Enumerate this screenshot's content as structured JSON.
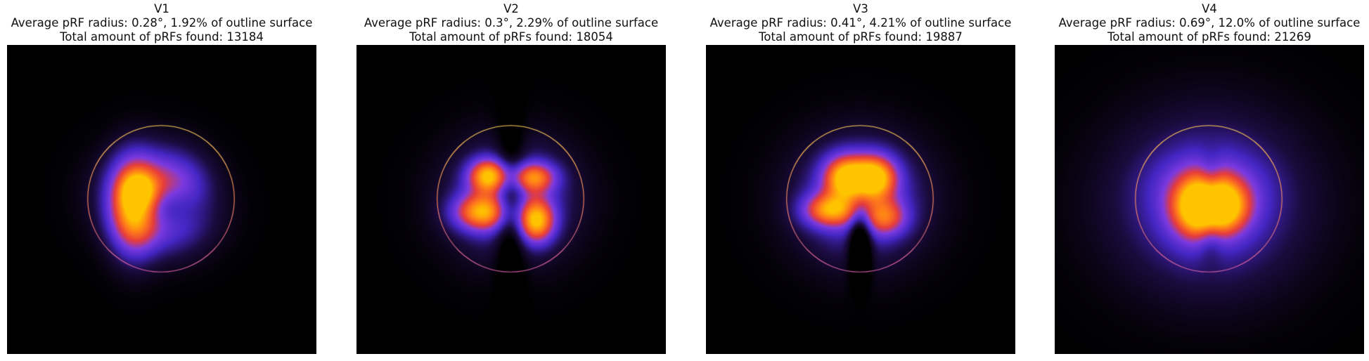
{
  "figure": {
    "background": "#ffffff",
    "colormap": [
      "#000000",
      "#1c0b3f",
      "#4426c4",
      "#7b3ae0",
      "#e63c3c",
      "#ff7a1a",
      "#ffc400"
    ],
    "outline_circle_colors": [
      "#ffd257",
      "#ff8c5a",
      "#cf5aa5"
    ]
  },
  "chart_data": [
    {
      "type": "heatmap",
      "title": "V1",
      "subtitle": "Average pRF radius: 0.28°, 1.92% of outline surface",
      "caption": "Total amount of pRFs found: 13184",
      "avg_prf_radius_deg": 0.28,
      "outline_surface_pct": 1.92,
      "total_prfs": 13184,
      "axes_visible": false,
      "hotspots": [
        {
          "u": -0.12,
          "v": -0.1,
          "sx": 0.3,
          "sy": 0.26,
          "w": 0.55
        },
        {
          "u": 0.05,
          "v": 0.3,
          "sx": 0.28,
          "sy": 0.22,
          "w": 0.35
        },
        {
          "u": -0.38,
          "v": 0.1,
          "sx": 0.14,
          "sy": 0.28,
          "w": 0.95
        },
        {
          "u": -0.3,
          "v": -0.12,
          "sx": 0.1,
          "sy": 0.1,
          "w": 0.4
        },
        {
          "u": 0.2,
          "v": -0.12,
          "sx": 0.2,
          "sy": 0.22,
          "w": 0.3
        }
      ],
      "voids": [
        {
          "u": 0.05,
          "v": 0.1,
          "sx": 0.2,
          "sy": 0.14,
          "w": 0.6
        }
      ]
    },
    {
      "type": "heatmap",
      "title": "V2",
      "subtitle": "Average pRF radius: 0.3°, 2.29% of outline surface",
      "caption": "Total amount of pRFs found: 18054",
      "avg_prf_radius_deg": 0.3,
      "outline_surface_pct": 2.29,
      "total_prfs": 18054,
      "axes_visible": false,
      "hotspots": [
        {
          "u": 0.0,
          "v": 0.0,
          "sx": 0.36,
          "sy": 0.34,
          "w": 0.55
        },
        {
          "u": -0.3,
          "v": -0.32,
          "sx": 0.12,
          "sy": 0.1,
          "w": 0.95
        },
        {
          "u": 0.3,
          "v": -0.3,
          "sx": 0.14,
          "sy": 0.09,
          "w": 0.75
        },
        {
          "u": -0.4,
          "v": 0.18,
          "sx": 0.17,
          "sy": 0.11,
          "w": 0.85
        },
        {
          "u": 0.35,
          "v": 0.3,
          "sx": 0.11,
          "sy": 0.13,
          "w": 0.95
        }
      ],
      "voids": [
        {
          "u": 0.0,
          "v": 0.05,
          "sx": 0.1,
          "sy": 0.4,
          "w": 0.55
        }
      ]
    },
    {
      "type": "heatmap",
      "title": "V3",
      "subtitle": "Average pRF radius: 0.41°, 4.21% of outline surface",
      "caption": "Total amount of pRFs found: 19887",
      "avg_prf_radius_deg": 0.41,
      "outline_surface_pct": 4.21,
      "total_prfs": 19887,
      "axes_visible": false,
      "hotspots": [
        {
          "u": 0.0,
          "v": 0.0,
          "sx": 0.38,
          "sy": 0.36,
          "w": 0.55
        },
        {
          "u": -0.2,
          "v": -0.3,
          "sx": 0.13,
          "sy": 0.13,
          "w": 0.95
        },
        {
          "u": 0.2,
          "v": -0.3,
          "sx": 0.13,
          "sy": 0.13,
          "w": 1.0
        },
        {
          "u": -0.42,
          "v": 0.15,
          "sx": 0.16,
          "sy": 0.1,
          "w": 0.8
        },
        {
          "u": 0.35,
          "v": 0.25,
          "sx": 0.13,
          "sy": 0.11,
          "w": 0.6
        }
      ],
      "voids": [
        {
          "u": 0.0,
          "v": 0.55,
          "sx": 0.07,
          "sy": 0.22,
          "w": 0.6
        }
      ]
    },
    {
      "type": "heatmap",
      "title": "V4",
      "subtitle": "Average pRF radius: 0.69°, 12.0% of outline surface",
      "caption": "Total amount of pRFs found: 21269",
      "avg_prf_radius_deg": 0.69,
      "outline_surface_pct": 12.0,
      "total_prfs": 21269,
      "axes_visible": false,
      "hotspots": [
        {
          "u": 0.0,
          "v": 0.05,
          "sx": 0.55,
          "sy": 0.5,
          "w": 0.5
        },
        {
          "u": -0.15,
          "v": 0.12,
          "sx": 0.16,
          "sy": 0.18,
          "w": 1.0
        },
        {
          "u": 0.2,
          "v": 0.1,
          "sx": 0.16,
          "sy": 0.16,
          "w": 0.9
        },
        {
          "u": 0.0,
          "v": -0.2,
          "sx": 0.3,
          "sy": 0.18,
          "w": 0.2
        }
      ],
      "voids": [
        {
          "u": 0.02,
          "v": -0.2,
          "sx": 0.07,
          "sy": 0.18,
          "w": 0.25
        },
        {
          "u": 0.02,
          "v": 0.45,
          "sx": 0.08,
          "sy": 0.18,
          "w": 0.25
        }
      ]
    }
  ]
}
